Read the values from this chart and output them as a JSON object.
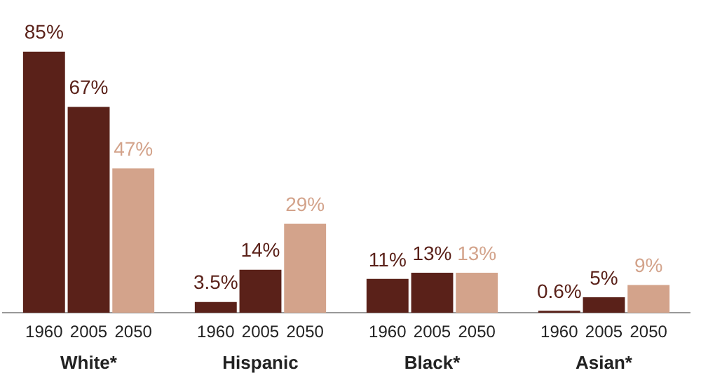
{
  "chart_data": {
    "type": "bar",
    "categories": [
      "White*",
      "Hispanic",
      "Black*",
      "Asian*"
    ],
    "series": [
      {
        "name": "1960",
        "color": "#5a2119",
        "values": [
          85,
          3.5,
          11,
          0.6
        ],
        "value_labels": [
          "85%",
          "3.5%",
          "11%",
          "0.6%"
        ]
      },
      {
        "name": "2005",
        "color": "#5a2119",
        "values": [
          67,
          14,
          13,
          5
        ],
        "value_labels": [
          "67%",
          "14%",
          "13%",
          "5%"
        ]
      },
      {
        "name": "2050",
        "color": "#d3a38b",
        "values": [
          47,
          29,
          13,
          9
        ],
        "value_labels": [
          "47%",
          "29%",
          "13%",
          "9%"
        ]
      }
    ],
    "legend": false,
    "grid": false
  }
}
